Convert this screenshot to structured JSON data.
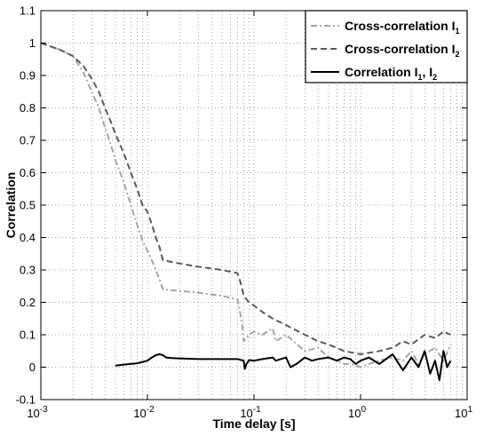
{
  "chart_data": {
    "type": "line",
    "xscale": "log",
    "xlim": [
      0.001,
      10
    ],
    "ylim": [
      -0.1,
      1.1
    ],
    "xlabel": "Time delay [s]",
    "ylabel": "Correlation",
    "grid": true,
    "legend_position": "top-right",
    "x_tick_labels": [
      {
        "base": "10",
        "exp": "-3",
        "value": 0.001
      },
      {
        "base": "10",
        "exp": "-2",
        "value": 0.01
      },
      {
        "base": "10",
        "exp": "-1",
        "value": 0.1
      },
      {
        "base": "10",
        "exp": "0",
        "value": 1
      },
      {
        "base": "10",
        "exp": "1",
        "value": 10
      }
    ],
    "y_tick_labels": [
      "-0.1",
      "0",
      "0.1",
      "0.2",
      "0.3",
      "0.4",
      "0.5",
      "0.6",
      "0.7",
      "0.8",
      "0.9",
      "1",
      "1.1"
    ],
    "y_ticks": [
      -0.1,
      0,
      0.1,
      0.2,
      0.3,
      0.4,
      0.5,
      0.6,
      0.7,
      0.8,
      0.9,
      1,
      1.1
    ],
    "series": [
      {
        "name": "Cross-correlation I",
        "name_sub": "1",
        "color": "#a6a6a6",
        "dash": "7,3,2,3",
        "width": 2,
        "x": [
          0.001,
          0.0015,
          0.002,
          0.0025,
          0.003,
          0.0035,
          0.004,
          0.0045,
          0.005,
          0.006,
          0.007,
          0.008,
          0.009,
          0.01,
          0.011,
          0.012,
          0.013,
          0.014,
          0.02,
          0.03,
          0.05,
          0.07,
          0.075,
          0.078,
          0.08,
          0.09,
          0.1,
          0.12,
          0.15,
          0.16,
          0.2,
          0.3,
          0.4,
          0.5,
          0.6,
          0.7,
          0.8,
          1.0,
          1.2,
          1.5,
          2.0,
          2.5,
          3.0,
          3.5,
          4.0,
          5.0,
          6.0,
          7.0
        ],
        "y": [
          1.0,
          0.98,
          0.96,
          0.91,
          0.85,
          0.8,
          0.74,
          0.69,
          0.64,
          0.57,
          0.5,
          0.44,
          0.39,
          0.36,
          0.33,
          0.3,
          0.27,
          0.24,
          0.235,
          0.23,
          0.22,
          0.21,
          0.16,
          0.12,
          0.08,
          0.1,
          0.11,
          0.1,
          0.12,
          0.08,
          0.1,
          0.05,
          0.06,
          0.03,
          0.02,
          0.01,
          0.01,
          0.0,
          0.01,
          0.02,
          0.03,
          0.02,
          0.05,
          0.01,
          0.04,
          0.06,
          0.02,
          0.07
        ]
      },
      {
        "name": "Cross-correlation I",
        "name_sub": "2",
        "color": "#5a5a5a",
        "dash": "7,4",
        "width": 2,
        "x": [
          0.001,
          0.0015,
          0.002,
          0.0025,
          0.003,
          0.0035,
          0.004,
          0.0045,
          0.005,
          0.006,
          0.007,
          0.008,
          0.009,
          0.01,
          0.011,
          0.012,
          0.013,
          0.014,
          0.02,
          0.03,
          0.05,
          0.07,
          0.075,
          0.08,
          0.09,
          0.1,
          0.12,
          0.15,
          0.2,
          0.3,
          0.4,
          0.5,
          0.7,
          1.0,
          1.5,
          2.0,
          2.5,
          3.0,
          4.0,
          5.0,
          6.0,
          7.0
        ],
        "y": [
          1.0,
          0.98,
          0.96,
          0.93,
          0.89,
          0.85,
          0.8,
          0.76,
          0.72,
          0.66,
          0.6,
          0.55,
          0.5,
          0.48,
          0.44,
          0.4,
          0.37,
          0.33,
          0.32,
          0.31,
          0.3,
          0.29,
          0.26,
          0.22,
          0.2,
          0.19,
          0.17,
          0.15,
          0.13,
          0.1,
          0.08,
          0.07,
          0.05,
          0.04,
          0.05,
          0.06,
          0.08,
          0.07,
          0.1,
          0.09,
          0.11,
          0.1
        ]
      },
      {
        "name": "Correlation I",
        "name_sub": "1",
        "name_tail": ", I",
        "name_tail_sub": "2",
        "color": "#000000",
        "dash": "",
        "width": 2,
        "x": [
          0.005,
          0.006,
          0.008,
          0.01,
          0.011,
          0.012,
          0.013,
          0.014,
          0.015,
          0.017,
          0.02,
          0.03,
          0.05,
          0.07,
          0.08,
          0.082,
          0.085,
          0.09,
          0.1,
          0.12,
          0.15,
          0.16,
          0.2,
          0.22,
          0.25,
          0.3,
          0.35,
          0.4,
          0.5,
          0.6,
          0.7,
          0.8,
          0.9,
          1.0,
          1.2,
          1.5,
          2.0,
          2.5,
          3.0,
          3.5,
          4.0,
          4.5,
          5.0,
          5.5,
          6.0,
          6.5,
          7.0
        ],
        "y": [
          0.005,
          0.008,
          0.012,
          0.02,
          0.03,
          0.037,
          0.04,
          0.037,
          0.03,
          0.028,
          0.027,
          0.025,
          0.025,
          0.025,
          0.02,
          -0.005,
          0.01,
          0.022,
          0.02,
          0.025,
          0.03,
          0.02,
          0.03,
          0.0,
          0.01,
          0.03,
          0.02,
          0.025,
          0.03,
          0.02,
          0.03,
          0.025,
          0.01,
          0.02,
          0.03,
          0.01,
          0.04,
          -0.01,
          0.03,
          0.0,
          0.05,
          -0.02,
          0.02,
          -0.04,
          0.05,
          0.0,
          0.02
        ]
      }
    ]
  }
}
